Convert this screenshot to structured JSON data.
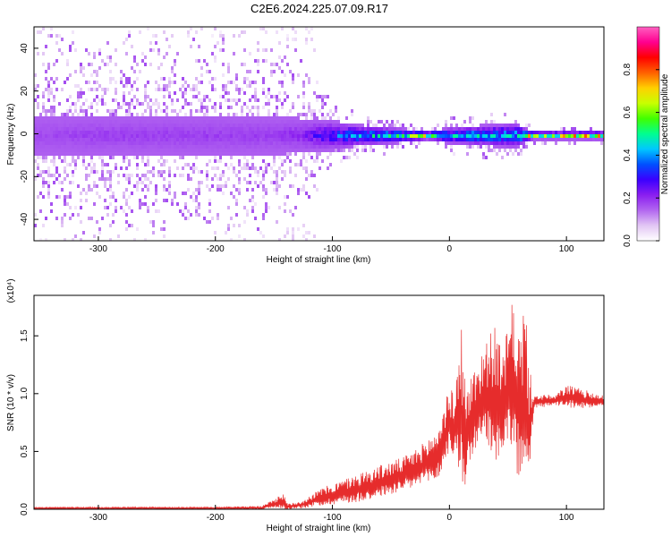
{
  "figure": {
    "title": "C2E6.2024.225.07.09.R17"
  },
  "chart_data": [
    {
      "type": "heatmap",
      "xlabel": "Height of straight line (km)",
      "ylabel": "Frequency (Hz)",
      "xlim": [
        -355,
        132
      ],
      "ylim": [
        -50,
        50
      ],
      "xticks": [
        -300,
        -200,
        -100,
        0,
        100
      ],
      "yticks": [
        -40,
        -20,
        0,
        20,
        40
      ],
      "colorbar": {
        "label": "Normalized spectral amplitude",
        "range": [
          0.0,
          1.0
        ],
        "ticks": [
          "0.0",
          "0.2",
          "0.4",
          "0.6",
          "0.8"
        ],
        "tick_values": [
          0.0,
          0.2,
          0.4,
          0.6,
          0.8
        ],
        "colors": [
          "#ffffff",
          "#e2c6f4",
          "#b266f0",
          "#8a1ef0",
          "#3a00ff",
          "#0050ff",
          "#00c8ff",
          "#00ff90",
          "#40ff00",
          "#c8ff00",
          "#ffd000",
          "#ff6000",
          "#ff0000",
          "#ff0090",
          "#ff60c0"
        ]
      },
      "profile": [
        {
          "x": -350,
          "spread": 48,
          "core_halfwidth": 9,
          "peak": 0.18
        },
        {
          "x": -300,
          "spread": 48,
          "core_halfwidth": 9,
          "peak": 0.2
        },
        {
          "x": -250,
          "spread": 46,
          "core_halfwidth": 9,
          "peak": 0.2
        },
        {
          "x": -200,
          "spread": 45,
          "core_halfwidth": 9,
          "peak": 0.2
        },
        {
          "x": -150,
          "spread": 45,
          "core_halfwidth": 9,
          "peak": 0.2
        },
        {
          "x": -125,
          "spread": 40,
          "core_halfwidth": 8,
          "peak": 0.25
        },
        {
          "x": -100,
          "spread": 14,
          "core_halfwidth": 7,
          "peak": 0.4
        },
        {
          "x": -80,
          "spread": 11,
          "core_halfwidth": 5,
          "peak": 0.55
        },
        {
          "x": -50,
          "spread": 8,
          "core_halfwidth": 4,
          "peak": 0.6
        },
        {
          "x": -20,
          "spread": 4,
          "core_halfwidth": 2,
          "peak": 0.85
        },
        {
          "x": 0,
          "spread": 9,
          "core_halfwidth": 4,
          "peak": 0.55
        },
        {
          "x": 30,
          "spread": 12,
          "core_halfwidth": 5,
          "peak": 0.6
        },
        {
          "x": 55,
          "spread": 12,
          "core_halfwidth": 6,
          "peak": 0.55
        },
        {
          "x": 70,
          "spread": 4,
          "core_halfwidth": 2,
          "peak": 0.95
        },
        {
          "x": 130,
          "spread": 4,
          "core_halfwidth": 2,
          "peak": 0.95
        }
      ]
    },
    {
      "type": "line",
      "ylabel": "SNR (10 * v/v)",
      "xlabel": "Height of straight line (km)",
      "y_multiplier": "(x10⁴)",
      "xlim": [
        -355,
        132
      ],
      "ylim": [
        0,
        1.85
      ],
      "xticks": [
        -300,
        -200,
        -100,
        0,
        100
      ],
      "yticks": [
        "0.0",
        "0.5",
        "1.0",
        "1.5"
      ],
      "ytick_values": [
        0.0,
        0.5,
        1.0,
        1.5
      ],
      "color": "#e62c2c",
      "envelope": {
        "x": [
          -355,
          -300,
          -200,
          -160,
          -148,
          -143,
          -138,
          -125,
          -110,
          -100,
          -80,
          -60,
          -40,
          -25,
          -10,
          -5,
          0,
          5,
          10,
          12,
          15,
          20,
          30,
          40,
          45,
          50,
          55,
          60,
          65,
          68,
          72,
          75,
          80,
          90,
          100,
          110,
          120,
          132
        ],
        "low": [
          0.0,
          0.0,
          0.0,
          0.0,
          0.01,
          0.0,
          0.0,
          0.01,
          0.03,
          0.04,
          0.06,
          0.1,
          0.15,
          0.2,
          0.25,
          0.35,
          0.5,
          0.45,
          0.2,
          0.05,
          0.35,
          0.45,
          0.55,
          0.4,
          0.5,
          0.55,
          0.35,
          0.25,
          0.1,
          0.25,
          0.85,
          0.88,
          0.88,
          0.9,
          0.88,
          0.87,
          0.88,
          0.9
        ],
        "high": [
          0.02,
          0.02,
          0.02,
          0.03,
          0.1,
          0.15,
          0.05,
          0.08,
          0.18,
          0.22,
          0.3,
          0.38,
          0.45,
          0.55,
          0.7,
          0.9,
          1.05,
          1.0,
          1.7,
          1.25,
          1.05,
          1.2,
          1.45,
          1.6,
          1.3,
          1.6,
          1.85,
          1.55,
          1.85,
          1.25,
          1.0,
          0.98,
          1.0,
          0.98,
          1.08,
          1.05,
          1.02,
          0.98
        ]
      }
    }
  ]
}
